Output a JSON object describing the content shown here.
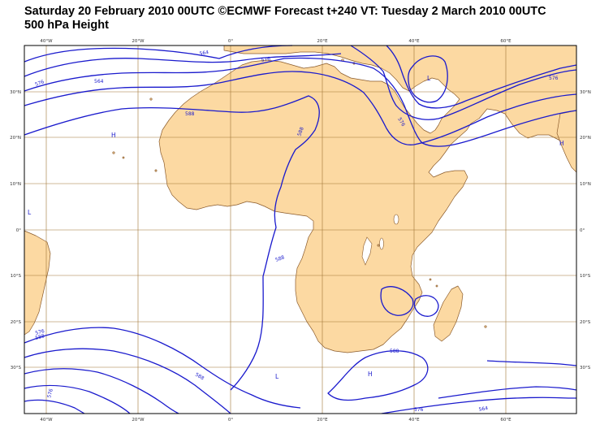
{
  "header": {
    "title_line1": "Saturday 20 February 2010 00UTC ©ECMWF Forecast t+240 VT: Tuesday 2 March 2010 00UTC",
    "title_line2": "500 hPa Height"
  },
  "colors": {
    "land": "#fcd9a2",
    "coast": "#8a5a2a",
    "grid": "#a07434",
    "contour": "#1a1acd",
    "sea": "#ffffff"
  },
  "axes": {
    "lon_labels": [
      "40°W",
      "20°W",
      "0°",
      "20°E",
      "40°E",
      "60°E"
    ],
    "lat_labels_left": [
      "30°N",
      "20°N",
      "10°N",
      "0°",
      "10°S",
      "20°S",
      "30°S"
    ],
    "lat_labels_right": [
      "30°N",
      "20°N",
      "10°N",
      "0°",
      "10°S",
      "20°S",
      "30°S"
    ]
  },
  "contour_labels": [
    "564",
    "576",
    "588",
    "576",
    "564",
    "576",
    "576",
    "588",
    "588",
    "588",
    "588",
    "576",
    "576",
    "564",
    "576",
    "588"
  ],
  "pressure_centers": [
    "L",
    "H",
    "L",
    "H",
    "L",
    "H",
    "L"
  ]
}
